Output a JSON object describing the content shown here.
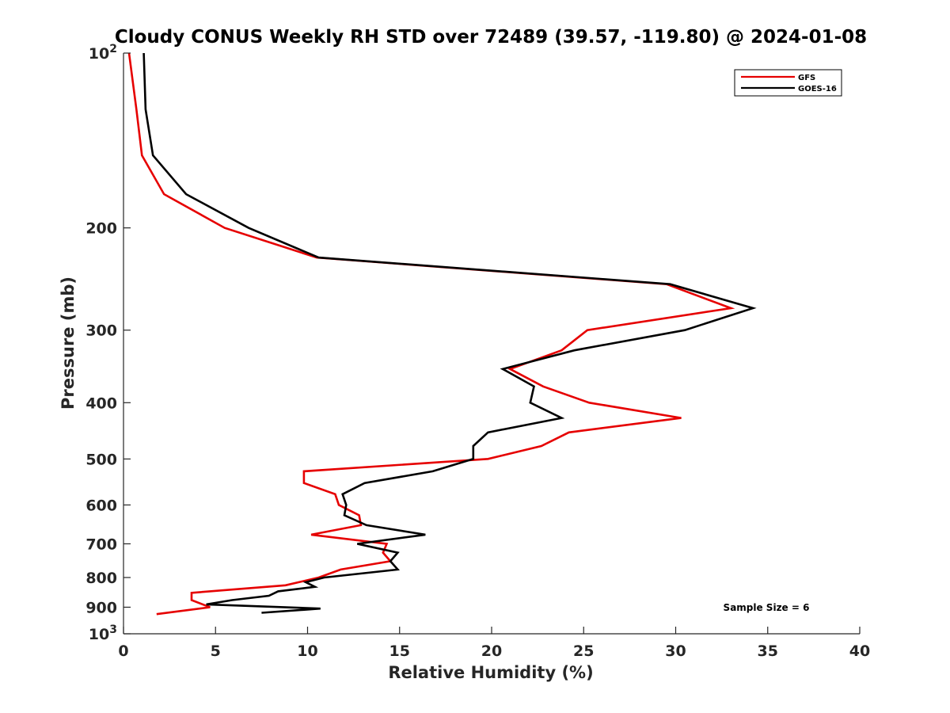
{
  "chart_data": {
    "type": "line",
    "title": "Cloudy CONUS Weekly RH STD over 72489 (39.57, -119.80) @ 2024-01-08",
    "xlabel": "Relative Humidity (%)",
    "ylabel": "Pressure (mb)",
    "xlim": [
      0,
      40
    ],
    "ylim": [
      100,
      1000
    ],
    "y_scale": "log",
    "y_reversed": true,
    "x_ticks": [
      0,
      5,
      10,
      15,
      20,
      25,
      30,
      35,
      40
    ],
    "y_ticks": [
      {
        "value": 100,
        "label": "10",
        "sup": "2"
      },
      {
        "value": 200,
        "label": "200",
        "sup": ""
      },
      {
        "value": 300,
        "label": "300",
        "sup": ""
      },
      {
        "value": 400,
        "label": "400",
        "sup": ""
      },
      {
        "value": 500,
        "label": "500",
        "sup": ""
      },
      {
        "value": 600,
        "label": "600",
        "sup": ""
      },
      {
        "value": 700,
        "label": "700",
        "sup": ""
      },
      {
        "value": 800,
        "label": "800",
        "sup": ""
      },
      {
        "value": 900,
        "label": "900",
        "sup": ""
      },
      {
        "value": 1000,
        "label": "10",
        "sup": "3"
      }
    ],
    "legend_position": "top-right",
    "annotation": "Sample Size = 6",
    "series": [
      {
        "name": "GFS",
        "color": "#e60000",
        "x": [
          0.3,
          0.7,
          1.0,
          2.2,
          5.5,
          10.5,
          29.5,
          33.0,
          25.2,
          23.8,
          21.0,
          22.8,
          25.3,
          30.3,
          24.2,
          22.7,
          19.8,
          9.8,
          9.8,
          11.5,
          11.7,
          12.8,
          12.9,
          10.2,
          14.3,
          14.1,
          14.5,
          11.8,
          10.6,
          8.8,
          3.7,
          3.7,
          4.7,
          1.8
        ],
        "y": [
          100,
          125,
          150,
          175,
          200,
          225,
          250,
          275,
          300,
          325,
          350,
          375,
          400,
          425,
          450,
          475,
          500,
          525,
          550,
          575,
          600,
          625,
          650,
          675,
          700,
          725,
          750,
          775,
          800,
          825,
          850,
          875,
          900,
          925
        ]
      },
      {
        "name": "GOES-16",
        "color": "#000000",
        "x": [
          1.1,
          1.2,
          1.6,
          3.4,
          6.8,
          10.6,
          29.7,
          34.2,
          30.5,
          24.5,
          20.6,
          22.3,
          22.1,
          23.8,
          19.8,
          19.0,
          19.0,
          16.8,
          13.1,
          11.9,
          12.1,
          12.0,
          13.2,
          16.4,
          12.7,
          14.9,
          14.5,
          14.9,
          10.9,
          9.9,
          10.4,
          8.4,
          7.9,
          5.9,
          4.5,
          10.7,
          7.5
        ],
        "y": [
          100,
          125,
          150,
          175,
          200,
          225,
          250,
          275,
          300,
          325,
          350,
          375,
          400,
          425,
          450,
          475,
          500,
          525,
          550,
          575,
          600,
          625,
          650,
          675,
          700,
          725,
          750,
          775,
          800,
          815,
          830,
          845,
          860,
          875,
          890,
          905,
          920
        ]
      }
    ]
  }
}
